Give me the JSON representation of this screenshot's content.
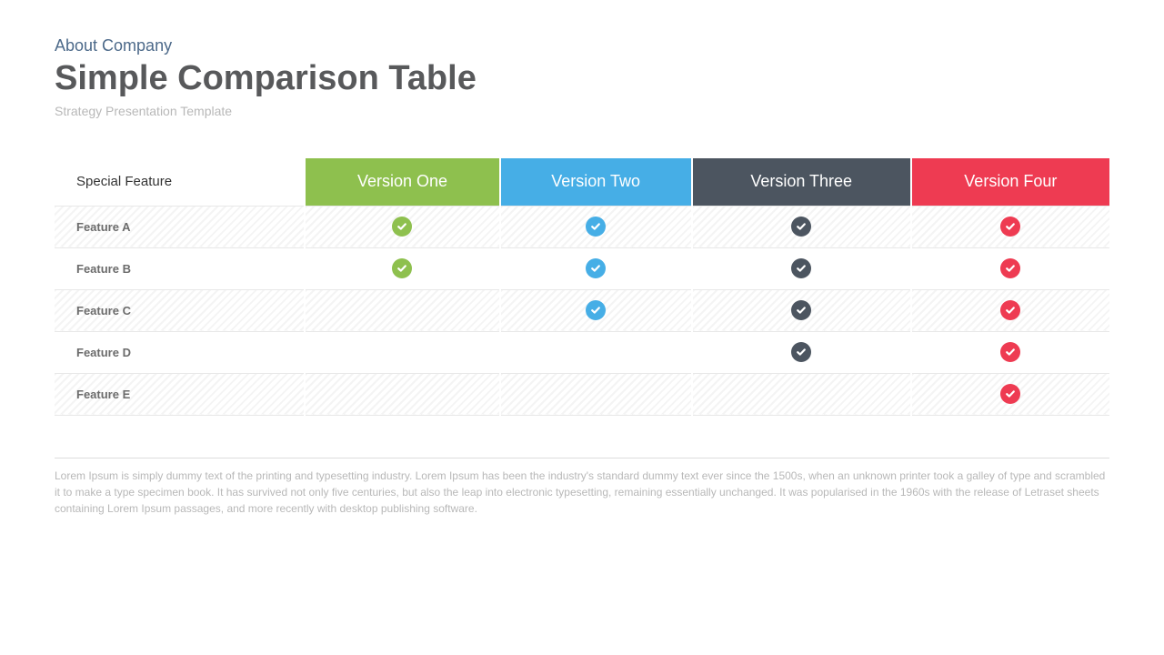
{
  "header": {
    "pretitle": "About Company",
    "title": "Simple Comparison Table",
    "subtitle": "Strategy Presentation Template",
    "pretitle_color": "#4d6a8a",
    "title_color": "#58595b",
    "subtitle_color": "#b8b8b8"
  },
  "table": {
    "corner_label": "Special Feature",
    "row_label_color": "#6b6b6b",
    "columns": [
      {
        "label": "Version One",
        "bg": "#8ec04e",
        "check_color": "#8ec04e"
      },
      {
        "label": "Version Two",
        "bg": "#46aee6",
        "check_color": "#46aee6"
      },
      {
        "label": "Version Three",
        "bg": "#4c5560",
        "check_color": "#4c5560"
      },
      {
        "label": "Version Four",
        "bg": "#ee3b52",
        "check_color": "#ee3b52"
      }
    ],
    "rows": [
      {
        "label": "Feature A",
        "checks": [
          true,
          true,
          true,
          true
        ]
      },
      {
        "label": "Feature B",
        "checks": [
          true,
          true,
          true,
          true
        ]
      },
      {
        "label": "Feature C",
        "checks": [
          false,
          true,
          true,
          true
        ]
      },
      {
        "label": "Feature D",
        "checks": [
          false,
          false,
          true,
          true
        ]
      },
      {
        "label": "Feature E",
        "checks": [
          false,
          false,
          false,
          true
        ]
      }
    ],
    "stripe_odd_rows": true
  },
  "footer": {
    "text": "Lorem Ipsum is simply dummy text of the printing and typesetting industry. Lorem Ipsum has been the industry's standard dummy text ever since the 1500s, when an unknown printer took a galley of type and scrambled it to make a type specimen book. It has survived not only five centuries, but also the leap into electronic typesetting, remaining essentially unchanged. It was popularised in the 1960s with the release of Letraset sheets containing Lorem Ipsum passages, and more recently with desktop publishing software.",
    "color": "#b8b8b8"
  }
}
